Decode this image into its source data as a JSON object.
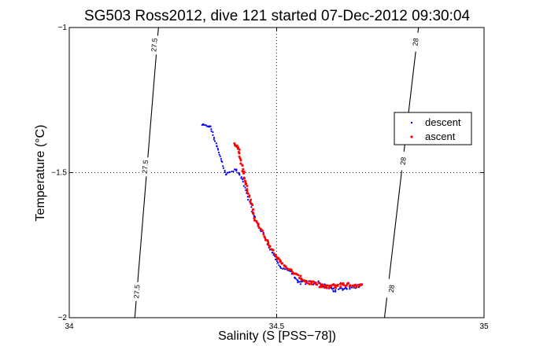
{
  "chart_data": {
    "type": "scatter",
    "title": "SG503 Ross2012, dive 121 started 07-Dec-2012 09:30:04",
    "xlabel": "Salinity (S [PSS−78])",
    "ylabel": "Temperature (°C)",
    "xlim": [
      34,
      35
    ],
    "ylim": [
      -2,
      -1
    ],
    "x_ticks": [
      34,
      34.5,
      35
    ],
    "x_tick_labels": [
      "34",
      "34.5",
      "35"
    ],
    "y_ticks": [
      -2,
      -1.5,
      -1
    ],
    "y_tick_labels": [
      "−2",
      "−1.5",
      "−1"
    ],
    "grid": "dotted at 34.5 and -1.5",
    "legend_position": "right",
    "contours": [
      {
        "label": "27.5",
        "points": [
          [
            34.158,
            -2.0
          ],
          [
            34.215,
            -1.0
          ]
        ],
        "label_positions": [
          [
            34.205,
            -1.06
          ],
          [
            34.183,
            -1.48
          ],
          [
            34.163,
            -1.91
          ]
        ]
      },
      {
        "label": "28",
        "points": [
          [
            34.76,
            -2.0
          ],
          [
            34.842,
            -1.0
          ]
        ],
        "label_positions": [
          [
            34.835,
            -1.05
          ],
          [
            34.805,
            -1.46
          ],
          [
            34.777,
            -1.9
          ]
        ]
      }
    ],
    "series": [
      {
        "name": "descent",
        "color": "#0000ff",
        "segments": [
          {
            "from": [
              34.32,
              -1.335
            ],
            "to": [
              34.34,
              -1.342
            ],
            "n": 10,
            "jitter": 0.002
          },
          {
            "from": [
              34.34,
              -1.342
            ],
            "to": [
              34.358,
              -1.42
            ],
            "n": 12,
            "jitter": 0.003
          },
          {
            "from": [
              34.358,
              -1.42
            ],
            "to": [
              34.378,
              -1.505
            ],
            "n": 12,
            "jitter": 0.003
          },
          {
            "from": [
              34.378,
              -1.505
            ],
            "to": [
              34.402,
              -1.49
            ],
            "n": 8,
            "jitter": 0.003
          },
          {
            "from": [
              34.402,
              -1.49
            ],
            "to": [
              34.418,
              -1.525
            ],
            "n": 8,
            "jitter": 0.003
          },
          {
            "from": [
              34.418,
              -1.525
            ],
            "to": [
              34.445,
              -1.65
            ],
            "n": 14,
            "jitter": 0.003
          },
          {
            "from": [
              34.445,
              -1.65
            ],
            "to": [
              34.49,
              -1.775
            ],
            "n": 20,
            "jitter": 0.004
          },
          {
            "from": [
              34.49,
              -1.775
            ],
            "to": [
              34.508,
              -1.825
            ],
            "n": 10,
            "jitter": 0.003
          },
          {
            "from": [
              34.508,
              -1.825
            ],
            "to": [
              34.535,
              -1.84
            ],
            "n": 10,
            "jitter": 0.003
          },
          {
            "from": [
              34.535,
              -1.84
            ],
            "to": [
              34.55,
              -1.878
            ],
            "n": 10,
            "jitter": 0.004
          },
          {
            "from": [
              34.55,
              -1.878
            ],
            "to": [
              34.6,
              -1.88
            ],
            "n": 22,
            "jitter": 0.006
          },
          {
            "from": [
              34.6,
              -1.88
            ],
            "to": [
              34.64,
              -1.905
            ],
            "n": 20,
            "jitter": 0.006
          },
          {
            "from": [
              34.64,
              -1.905
            ],
            "to": [
              34.7,
              -1.89
            ],
            "n": 24,
            "jitter": 0.005
          }
        ]
      },
      {
        "name": "ascent",
        "color": "#ff0000",
        "segments": [
          {
            "from": [
              34.398,
              -1.4
            ],
            "to": [
              34.408,
              -1.415
            ],
            "n": 10,
            "jitter": 0.003
          },
          {
            "from": [
              34.408,
              -1.415
            ],
            "to": [
              34.425,
              -1.535
            ],
            "n": 18,
            "jitter": 0.004
          },
          {
            "from": [
              34.425,
              -1.535
            ],
            "to": [
              34.448,
              -1.66
            ],
            "n": 18,
            "jitter": 0.004
          },
          {
            "from": [
              34.448,
              -1.66
            ],
            "to": [
              34.48,
              -1.745
            ],
            "n": 16,
            "jitter": 0.004
          },
          {
            "from": [
              34.48,
              -1.745
            ],
            "to": [
              34.51,
              -1.81
            ],
            "n": 14,
            "jitter": 0.004
          },
          {
            "from": [
              34.51,
              -1.81
            ],
            "to": [
              34.54,
              -1.845
            ],
            "n": 14,
            "jitter": 0.004
          },
          {
            "from": [
              34.54,
              -1.845
            ],
            "to": [
              34.57,
              -1.875
            ],
            "n": 14,
            "jitter": 0.004
          },
          {
            "from": [
              34.57,
              -1.875
            ],
            "to": [
              34.62,
              -1.895
            ],
            "n": 22,
            "jitter": 0.006
          },
          {
            "from": [
              34.62,
              -1.895
            ],
            "to": [
              34.66,
              -1.885
            ],
            "n": 20,
            "jitter": 0.006
          },
          {
            "from": [
              34.66,
              -1.885
            ],
            "to": [
              34.705,
              -1.89
            ],
            "n": 22,
            "jitter": 0.005
          }
        ]
      }
    ]
  }
}
